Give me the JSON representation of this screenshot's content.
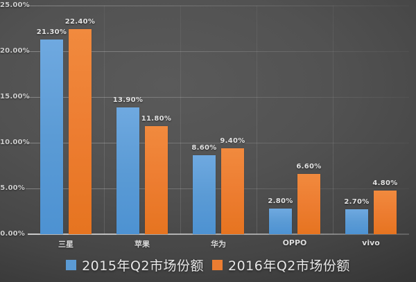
{
  "chart_data": {
    "type": "bar",
    "title": "",
    "categories": [
      "三星",
      "苹果",
      "华为",
      "OPPO",
      "vivo"
    ],
    "series": [
      {
        "name": "2015年Q2市场份额",
        "color": "#5b9bd5",
        "values": [
          21.3,
          13.9,
          8.6,
          2.8,
          2.7
        ],
        "labels": [
          "21.30%",
          "13.90%",
          "8.60%",
          "2.80%",
          "2.70%"
        ]
      },
      {
        "name": "2016年Q2市场份额",
        "color": "#ed7d31",
        "values": [
          22.4,
          11.8,
          9.4,
          6.6,
          4.8
        ],
        "labels": [
          "22.40%",
          "11.80%",
          "9.40%",
          "6.60%",
          "4.80%"
        ]
      }
    ],
    "y_axis": {
      "min": 0,
      "max": 25,
      "step": 5,
      "tick_labels": [
        "0.00%",
        "5.00%",
        "10.00%",
        "15.00%",
        "20.00%",
        "25.00%"
      ]
    },
    "grid": true,
    "legend_position": "bottom",
    "background": "dark-gray-gradient"
  }
}
